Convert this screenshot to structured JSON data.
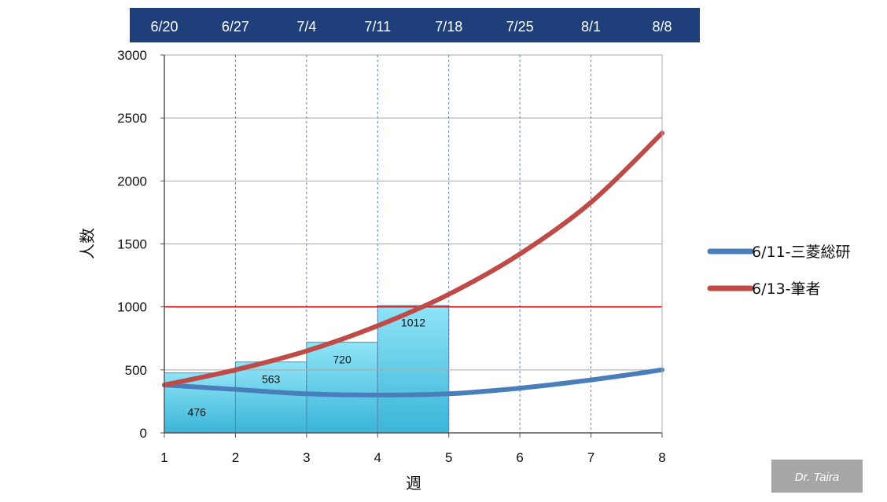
{
  "chart_data": {
    "type": "bar",
    "xlabel": "週",
    "ylabel": "人数",
    "x_ticks": [
      1,
      2,
      3,
      4,
      5,
      6,
      7,
      8
    ],
    "xlim": [
      1,
      8
    ],
    "ylim": [
      0,
      3000
    ],
    "y_ticks": [
      0,
      500,
      1000,
      1500,
      2000,
      2500,
      3000
    ],
    "date_labels": [
      "6/20",
      "6/27",
      "7/4",
      "7/11",
      "7/18",
      "7/25",
      "8/1",
      "8/8"
    ],
    "bars": [
      {
        "x_start": 1,
        "x_end": 2,
        "value": 476,
        "label": "476"
      },
      {
        "x_start": 2,
        "x_end": 3,
        "value": 563,
        "label": "563"
      },
      {
        "x_start": 3,
        "x_end": 4,
        "value": 720,
        "label": "720"
      },
      {
        "x_start": 4,
        "x_end": 5,
        "value": 1012,
        "label": "1012"
      }
    ],
    "reference_line": {
      "y": 1000,
      "color": "#c00000"
    },
    "series": [
      {
        "name": "6/11-三菱総研",
        "color": "#4a7ebb",
        "x": [
          1,
          2,
          3,
          4,
          5,
          6,
          7,
          8
        ],
        "values": [
          380,
          345,
          310,
          300,
          310,
          355,
          420,
          500
        ]
      },
      {
        "name": "6/13-筆者",
        "color": "#be4b48",
        "x": [
          1,
          2,
          3,
          4,
          5,
          6,
          7,
          8
        ],
        "values": [
          380,
          500,
          650,
          850,
          1100,
          1420,
          1830,
          2380
        ]
      }
    ],
    "grid": true,
    "legend_position": "right"
  },
  "credit": "Dr. Taira",
  "colors": {
    "date_band": "#1f3f7a",
    "bar_top": "#8fe4f7",
    "bar_bottom": "#3ab5d8",
    "credit_box": "#a6a6a6"
  }
}
